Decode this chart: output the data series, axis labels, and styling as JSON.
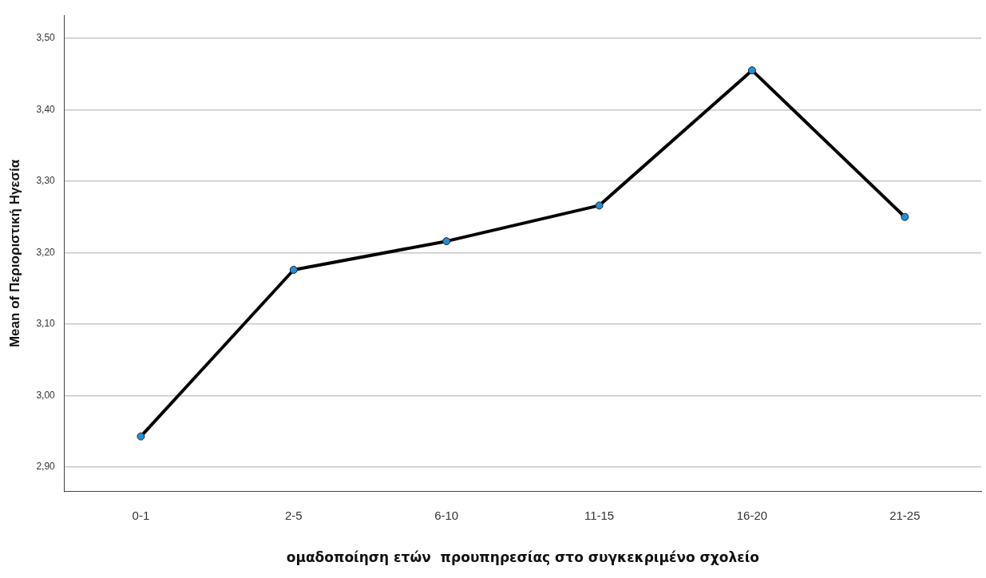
{
  "chart_data": {
    "type": "line",
    "xlabel": "ομαδοποίηση ετών  προυπηρεσίας στο συγκεκριμένο σχολείο",
    "ylabel": "Mean of Περιοριστική Ηγεσία",
    "categories": [
      "0-1",
      "2-5",
      "6-10",
      "11-15",
      "16-20",
      "21-25"
    ],
    "series": [
      {
        "color": "#000000",
        "colors": [
          "#1f8fdb",
          "#1f8fdb",
          "#1f8fdb",
          "#1f8fdb",
          "#1f8fdb",
          "#1f8fdb"
        ],
        "values": [
          2.943,
          3.176,
          3.216,
          3.266,
          3.455,
          3.25
        ]
      }
    ],
    "ylim": [
      2.866,
      3.532
    ],
    "yticks": [
      {
        "value": 2.9,
        "label": "2,90"
      },
      {
        "value": 3.0,
        "label": "3,00"
      },
      {
        "value": 3.1,
        "label": "3,10"
      },
      {
        "value": 3.2,
        "label": "3,20"
      },
      {
        "value": 3.3,
        "label": "3,30"
      },
      {
        "value": 3.4,
        "label": "3,40"
      },
      {
        "value": 3.5,
        "label": "3,50"
      }
    ],
    "grid": "y",
    "legend": false,
    "marker": "circle",
    "line_style": "solid"
  }
}
